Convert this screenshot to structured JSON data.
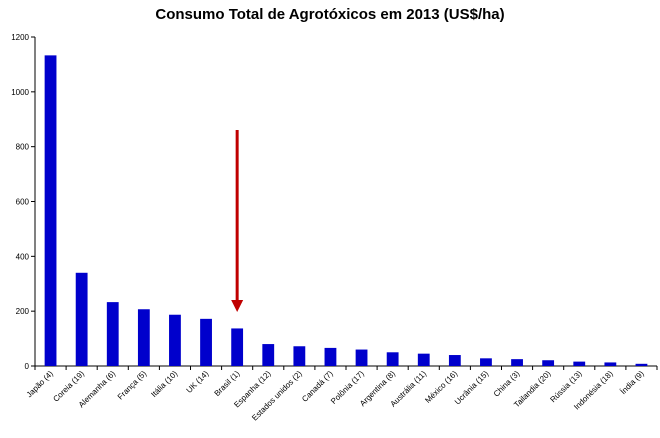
{
  "chart_data": {
    "type": "bar",
    "title": "Consumo Total de Agrotóxicos em 2013 (US$/ha)",
    "xlabel": "",
    "ylabel": "",
    "ylim": [
      0,
      1200
    ],
    "yticks": [
      0,
      200,
      400,
      600,
      800,
      1000,
      1200
    ],
    "categories": [
      "Japão (4)",
      "Coreia (19)",
      "Alemanha (6)",
      "França (5)",
      "Itália (10)",
      "UK (14)",
      "Brasil (1)",
      "Espanha (12)",
      "Estados unidos (2)",
      "Canadá (7)",
      "Polônia (17)",
      "Argentina (8)",
      "Austrália (11)",
      "México (16)",
      "Ucrânia (15)",
      "China (3)",
      "Tailandia (20)",
      "Rússia (13)",
      "Indonésia (18)",
      "Índia (9)"
    ],
    "values": [
      1133,
      340,
      233,
      207,
      187,
      172,
      137,
      80,
      72,
      66,
      60,
      50,
      45,
      40,
      28,
      25,
      21,
      16,
      13,
      8
    ],
    "bar_color": "#0000cc",
    "grid": false,
    "annotation": {
      "type": "arrow",
      "target_category": "Brasil (1)",
      "color": "#c00000"
    }
  }
}
